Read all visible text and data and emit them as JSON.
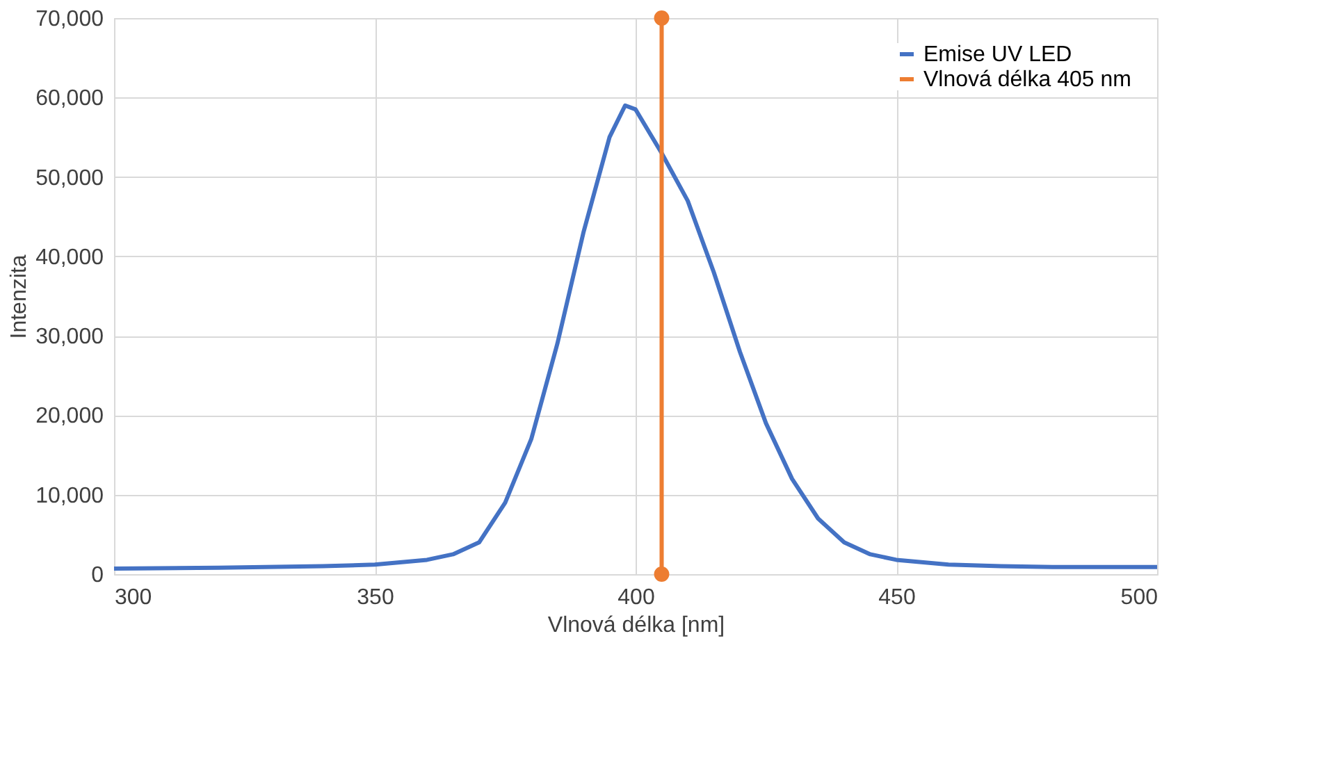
{
  "chart_data": {
    "type": "line",
    "xlabel": "Vlnová délka [nm]",
    "ylabel": "Intenzita",
    "xlim": [
      300,
      500
    ],
    "xticks": [
      300,
      350,
      400,
      450,
      500
    ],
    "ylim": [
      0,
      70000
    ],
    "yticks": [
      0,
      {
        "value": 10000,
        "label": "10,000"
      },
      {
        "value": 20000,
        "label": "20,000"
      },
      {
        "value": 30000,
        "label": "30,000"
      },
      {
        "value": 40000,
        "label": "40,000"
      },
      {
        "value": 50000,
        "label": "50,000"
      },
      {
        "value": 60000,
        "label": "60,000"
      },
      {
        "value": 70000,
        "label": "70,000"
      }
    ],
    "grid": true,
    "legend": "top right",
    "line_style": "solid",
    "series": [
      {
        "name": "Emise UV LED",
        "color": "#4472c4",
        "marker": "none",
        "x": [
          300,
          320,
          340,
          350,
          360,
          365,
          370,
          375,
          380,
          385,
          390,
          395,
          398,
          400,
          405,
          410,
          415,
          420,
          425,
          430,
          435,
          440,
          445,
          450,
          460,
          470,
          480,
          500
        ],
        "values": [
          700,
          800,
          1000,
          1200,
          1800,
          2500,
          4000,
          9000,
          17000,
          29000,
          43000,
          55000,
          59000,
          58500,
          53000,
          47000,
          38000,
          28000,
          19000,
          12000,
          7000,
          4000,
          2500,
          1800,
          1200,
          1000,
          900,
          900
        ]
      },
      {
        "name": "Vlnová délka 405 nm",
        "color": "#ed7d31",
        "marker": "circle",
        "x": [
          405,
          405
        ],
        "values": [
          0,
          70000
        ]
      }
    ]
  }
}
